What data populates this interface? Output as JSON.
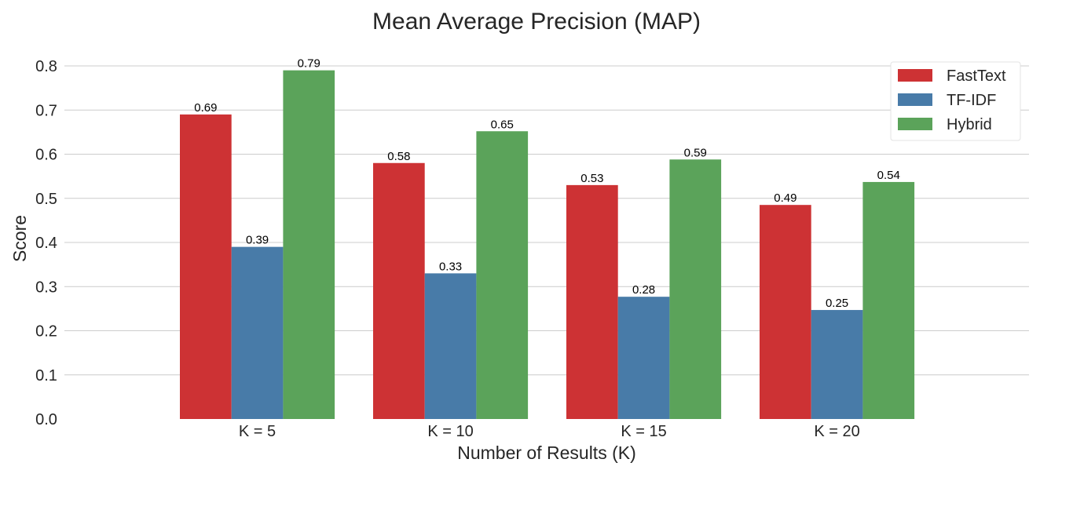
{
  "chart_data": {
    "type": "bar",
    "title": "Mean Average Precision (MAP)",
    "xlabel": "Number of Results (K)",
    "ylabel": "Score",
    "categories": [
      "K = 5",
      "K = 10",
      "K = 15",
      "K = 20"
    ],
    "ylim": [
      0,
      0.8
    ],
    "yticks": [
      0.0,
      0.1,
      0.2,
      0.3,
      0.4,
      0.5,
      0.6,
      0.7,
      0.8
    ],
    "ytick_labels": [
      "0.0",
      "0.1",
      "0.2",
      "0.3",
      "0.4",
      "0.5",
      "0.6",
      "0.7",
      "0.8"
    ],
    "grid": true,
    "legend_position": "top-right",
    "series": [
      {
        "name": "FastText",
        "color": "#cd3234",
        "values": [
          0.69,
          0.58,
          0.53,
          0.485
        ],
        "labels": [
          "0.69",
          "0.58",
          "0.53",
          "0.49"
        ]
      },
      {
        "name": "TF-IDF",
        "color": "#487ba8",
        "values": [
          0.39,
          0.33,
          0.277,
          0.247
        ],
        "labels": [
          "0.39",
          "0.33",
          "0.28",
          "0.25"
        ]
      },
      {
        "name": "Hybrid",
        "color": "#5ba35a",
        "values": [
          0.79,
          0.652,
          0.588,
          0.537
        ],
        "labels": [
          "0.79",
          "0.65",
          "0.59",
          "0.54"
        ]
      }
    ]
  }
}
